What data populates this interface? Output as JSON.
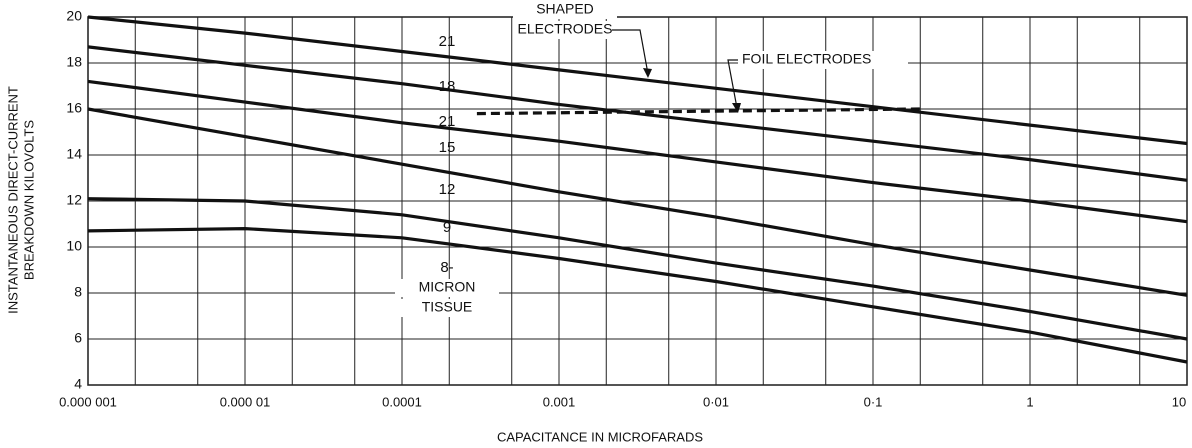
{
  "chart_data": {
    "type": "line",
    "xlabel": "CAPACITANCE IN MICROFARADS",
    "ylabel": [
      "INSTANTANEOUS DIRECT-CURRENT",
      "BREAKDOWN KILOVOLTS"
    ],
    "xscale": "log",
    "xlim": [
      1e-06,
      10
    ],
    "ylim": [
      4,
      20
    ],
    "xticks": [
      {
        "value": 1e-06,
        "label": "0.000 001"
      },
      {
        "value": 1e-05,
        "label": "0.000 01"
      },
      {
        "value": 0.0001,
        "label": "0.0001"
      },
      {
        "value": 0.001,
        "label": "0.001"
      },
      {
        "value": 0.01,
        "label": "0·01"
      },
      {
        "value": 0.1,
        "label": "0·1"
      },
      1,
      10
    ],
    "xminorticks": [
      2e-06,
      5e-06,
      2e-05,
      5e-05,
      0.0002,
      0.0005,
      0.002,
      0.005,
      0.02,
      0.05,
      0.2,
      0.5,
      2,
      5
    ],
    "yticks": [
      4,
      6,
      8,
      10,
      12,
      14,
      16,
      18,
      20
    ],
    "grid": true,
    "series": [
      {
        "name": "21",
        "color": "#111111",
        "dash": false,
        "x": [
          1e-06,
          1e-05,
          0.0001,
          0.001,
          0.01,
          0.1,
          1,
          10
        ],
        "values": [
          20.0,
          19.3,
          18.5,
          17.7,
          16.9,
          16.1,
          15.3,
          14.5
        ]
      },
      {
        "name": "18",
        "color": "#111111",
        "dash": false,
        "x": [
          1e-06,
          1e-05,
          0.0001,
          0.001,
          0.01,
          0.1,
          1,
          10
        ],
        "values": [
          18.7,
          17.9,
          17.1,
          16.2,
          15.4,
          14.6,
          13.8,
          12.9
        ]
      },
      {
        "name": "21",
        "color": "#111111",
        "dash": true,
        "x": [
          0.0003,
          0.2
        ],
        "values": [
          15.8,
          16.0
        ]
      },
      {
        "name": "15",
        "color": "#111111",
        "dash": false,
        "x": [
          1e-06,
          1e-05,
          0.0001,
          0.001,
          0.01,
          0.1,
          1,
          10
        ],
        "values": [
          17.2,
          16.3,
          15.4,
          14.6,
          13.7,
          12.8,
          12.0,
          11.1
        ]
      },
      {
        "name": "12",
        "color": "#111111",
        "dash": false,
        "x": [
          1e-06,
          1e-05,
          0.0001,
          0.001,
          0.01,
          0.1,
          1,
          10
        ],
        "values": [
          16.0,
          14.8,
          13.6,
          12.4,
          11.3,
          10.1,
          9.0,
          7.9
        ]
      },
      {
        "name": "9",
        "color": "#111111",
        "dash": false,
        "x": [
          1e-06,
          1e-05,
          0.0001,
          0.001,
          0.01,
          0.1,
          1,
          10
        ],
        "values": [
          12.1,
          12.0,
          11.4,
          10.4,
          9.3,
          8.3,
          7.2,
          6.0
        ]
      },
      {
        "name": "8-",
        "color": "#111111",
        "dash": false,
        "x": [
          1e-06,
          1e-05,
          0.0001,
          0.001,
          0.01,
          0.1,
          1,
          10
        ],
        "values": [
          10.7,
          10.8,
          10.4,
          9.5,
          8.5,
          7.4,
          6.3,
          5.0
        ]
      }
    ],
    "annotations": [
      "SHAPED",
      "ELECTRODES",
      "FOIL ELECTRODES",
      "MICRON",
      "TISSUE"
    ]
  }
}
